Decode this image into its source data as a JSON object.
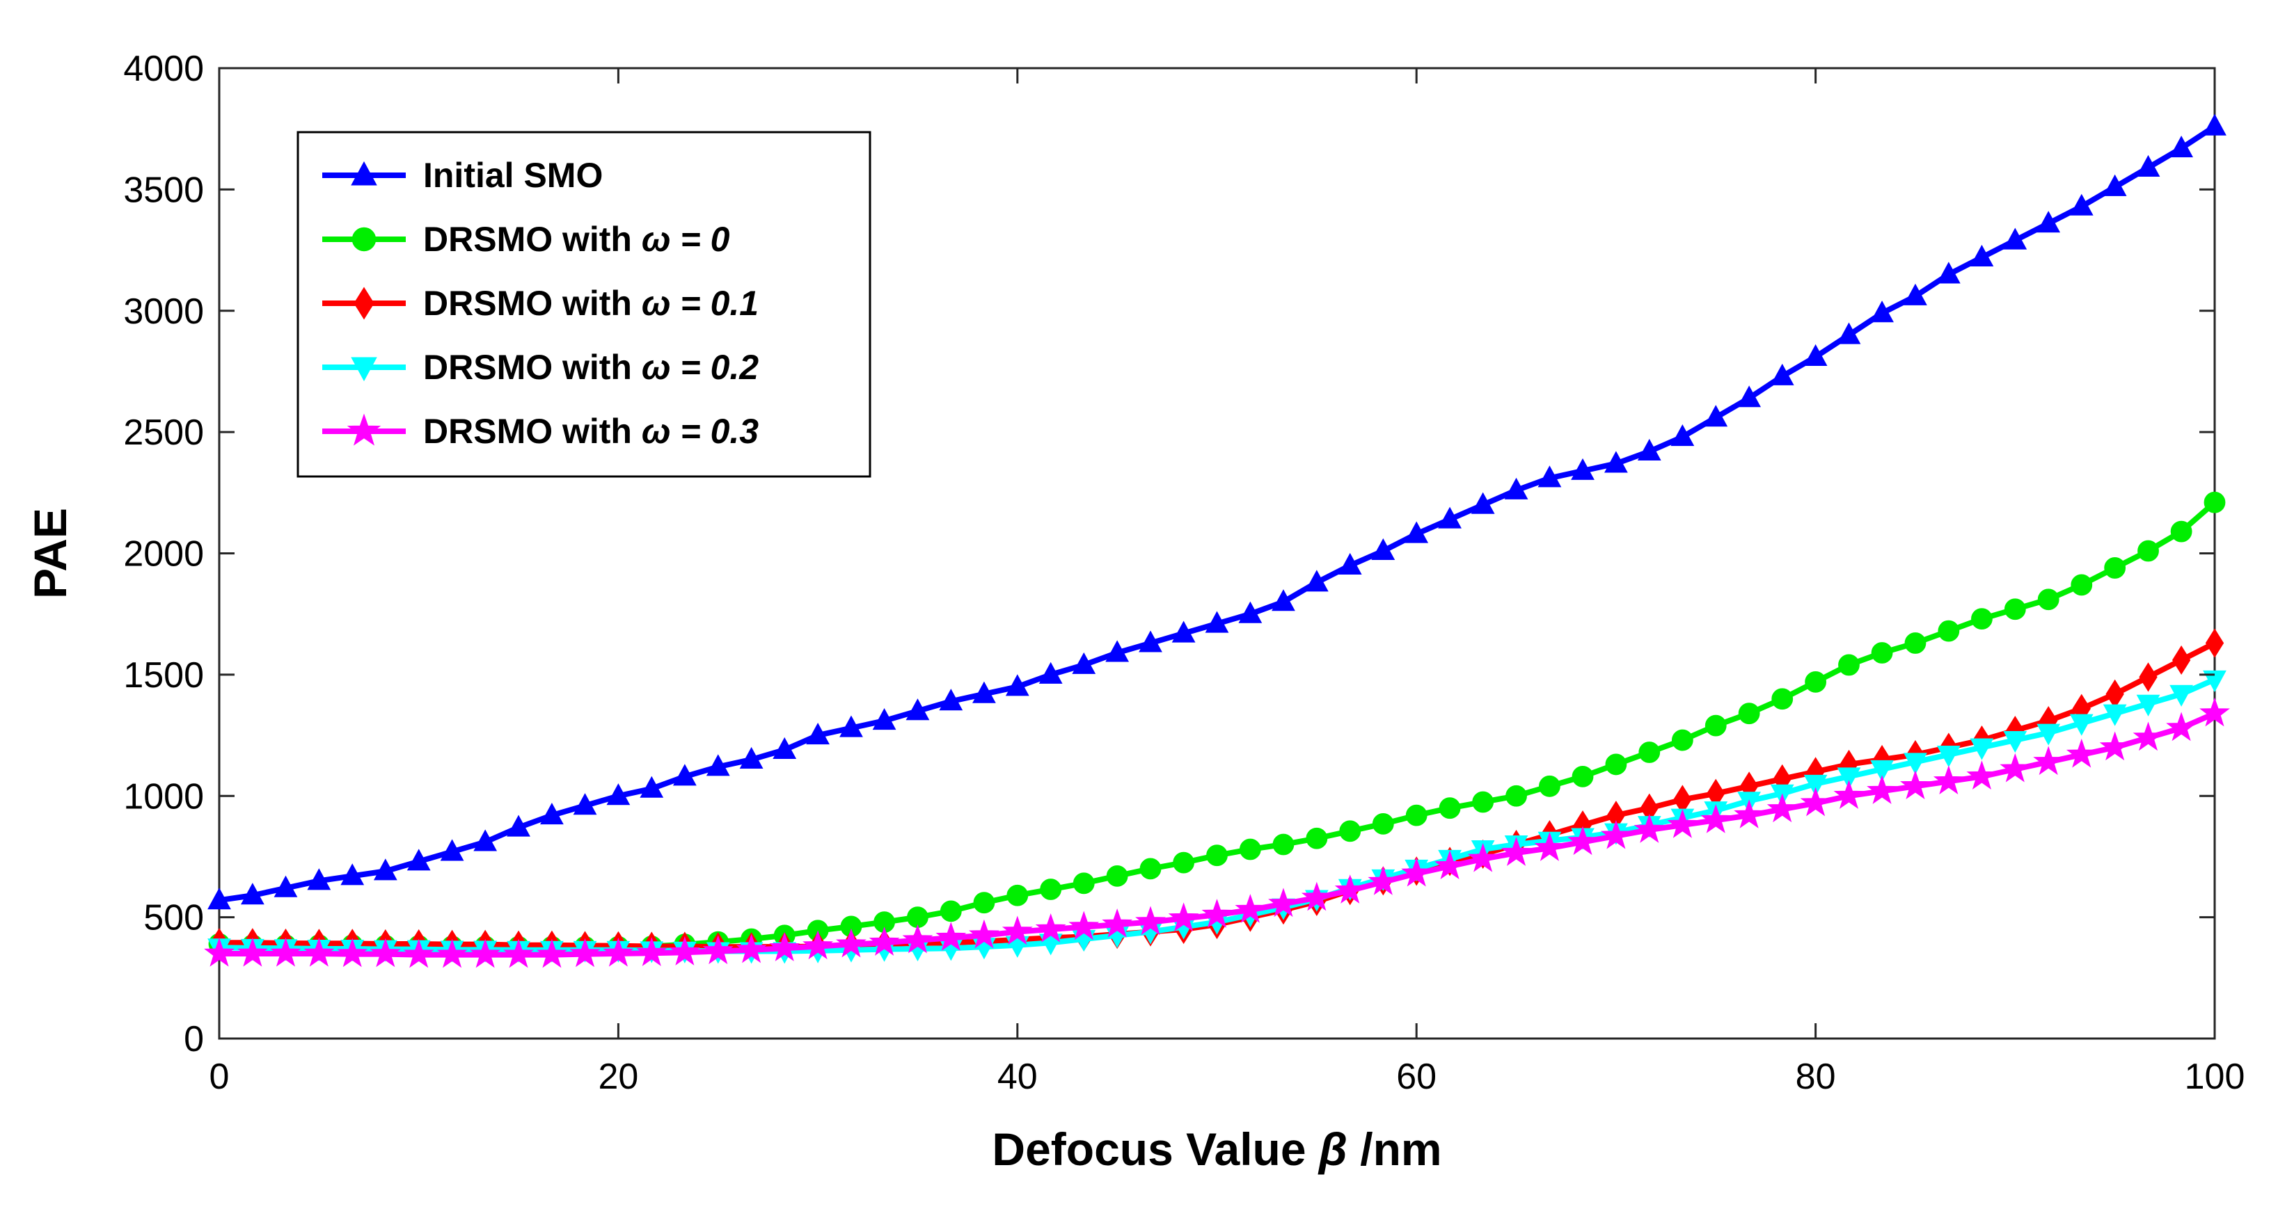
{
  "chart_data": {
    "type": "line",
    "title": "",
    "xlabel": "Defocus Value",
    "xlabel_symbol": "β",
    "xlabel_unit": "/nm",
    "ylabel": "PAE",
    "xlim": [
      0,
      100
    ],
    "ylim": [
      0,
      4000
    ],
    "xticks": [
      0,
      20,
      40,
      60,
      80,
      100
    ],
    "yticks": [
      0,
      500,
      1000,
      1500,
      2000,
      2500,
      3000,
      3500,
      4000
    ],
    "grid": false,
    "legend_position": "top-left",
    "x": [
      0,
      1.67,
      3.33,
      5,
      6.67,
      8.33,
      10,
      11.67,
      13.33,
      15,
      16.67,
      18.33,
      20,
      21.67,
      23.33,
      25,
      26.67,
      28.33,
      30,
      31.67,
      33.33,
      35,
      36.67,
      38.33,
      40,
      41.67,
      43.33,
      45,
      46.67,
      48.33,
      50,
      51.67,
      53.33,
      55,
      56.67,
      58.33,
      60,
      61.67,
      63.33,
      65,
      66.67,
      68.33,
      70,
      71.67,
      73.33,
      75,
      76.67,
      78.33,
      80,
      81.67,
      83.33,
      85,
      86.67,
      88.33,
      90,
      91.67,
      93.33,
      95,
      96.67,
      98.33,
      100
    ],
    "series": [
      {
        "name": "Initial SMO",
        "name_prefix": "Initial SMO",
        "omega": "",
        "color": "#0000FF",
        "marker": "triangle-up",
        "values": [
          570,
          590,
          620,
          650,
          670,
          690,
          730,
          770,
          810,
          870,
          920,
          960,
          1000,
          1030,
          1080,
          1120,
          1150,
          1190,
          1250,
          1280,
          1310,
          1350,
          1390,
          1420,
          1450,
          1500,
          1540,
          1590,
          1630,
          1670,
          1710,
          1750,
          1800,
          1880,
          1950,
          2010,
          2080,
          2140,
          2200,
          2260,
          2310,
          2340,
          2370,
          2420,
          2480,
          2560,
          2640,
          2730,
          2810,
          2900,
          2990,
          3060,
          3150,
          3220,
          3290,
          3360,
          3430,
          3510,
          3590,
          3670,
          3760
        ]
      },
      {
        "name": "DRSMO with ω = 0",
        "name_prefix": "DRSMO with",
        "omega": "ω = 0",
        "color": "#00EE00",
        "marker": "circle",
        "values": [
          390,
          385,
          385,
          385,
          385,
          383,
          382,
          380,
          380,
          378,
          378,
          378,
          378,
          380,
          388,
          398,
          410,
          425,
          445,
          462,
          480,
          500,
          525,
          560,
          590,
          615,
          640,
          670,
          700,
          725,
          755,
          780,
          800,
          825,
          855,
          885,
          920,
          950,
          975,
          1000,
          1040,
          1080,
          1130,
          1180,
          1230,
          1290,
          1340,
          1400,
          1470,
          1540,
          1590,
          1630,
          1680,
          1730,
          1770,
          1810,
          1870,
          1940,
          2010,
          2090,
          2210
        ]
      },
      {
        "name": "DRSMO with ω = 0.1",
        "name_prefix": "DRSMO with",
        "omega": "ω = 0.1",
        "color": "#FF0000",
        "marker": "diamond",
        "values": [
          395,
          395,
          393,
          392,
          392,
          390,
          390,
          388,
          388,
          385,
          385,
          383,
          382,
          380,
          380,
          378,
          378,
          378,
          380,
          385,
          390,
          393,
          395,
          400,
          408,
          415,
          420,
          430,
          440,
          450,
          470,
          500,
          530,
          565,
          610,
          650,
          690,
          730,
          760,
          800,
          840,
          880,
          920,
          950,
          985,
          1010,
          1040,
          1070,
          1100,
          1130,
          1150,
          1170,
          1200,
          1230,
          1270,
          1310,
          1360,
          1420,
          1490,
          1560,
          1630
        ]
      },
      {
        "name": "DRSMO with ω = 0.2",
        "name_prefix": "DRSMO with",
        "omega": "ω = 0.2",
        "color": "#00FFFF",
        "marker": "triangle-down",
        "values": [
          375,
          373,
          372,
          370,
          370,
          368,
          368,
          366,
          366,
          365,
          365,
          365,
          365,
          363,
          362,
          360,
          360,
          360,
          362,
          365,
          368,
          370,
          372,
          378,
          385,
          395,
          410,
          425,
          440,
          460,
          480,
          510,
          540,
          575,
          620,
          660,
          700,
          740,
          780,
          800,
          815,
          830,
          850,
          880,
          910,
          940,
          980,
          1010,
          1050,
          1080,
          1110,
          1140,
          1170,
          1200,
          1230,
          1260,
          1300,
          1340,
          1380,
          1420,
          1480
        ]
      },
      {
        "name": "DRSMO with ω = 0.3",
        "name_prefix": "DRSMO with",
        "omega": "ω = 0.3",
        "color": "#FF00FF",
        "marker": "star",
        "values": [
          350,
          350,
          350,
          350,
          348,
          348,
          345,
          345,
          345,
          345,
          345,
          348,
          350,
          352,
          355,
          360,
          365,
          372,
          380,
          388,
          395,
          405,
          415,
          425,
          440,
          450,
          460,
          470,
          480,
          495,
          510,
          530,
          555,
          580,
          610,
          645,
          680,
          710,
          740,
          765,
          785,
          810,
          835,
          860,
          880,
          900,
          920,
          945,
          970,
          1000,
          1020,
          1040,
          1060,
          1080,
          1110,
          1140,
          1170,
          1200,
          1240,
          1280,
          1340
        ]
      }
    ]
  }
}
